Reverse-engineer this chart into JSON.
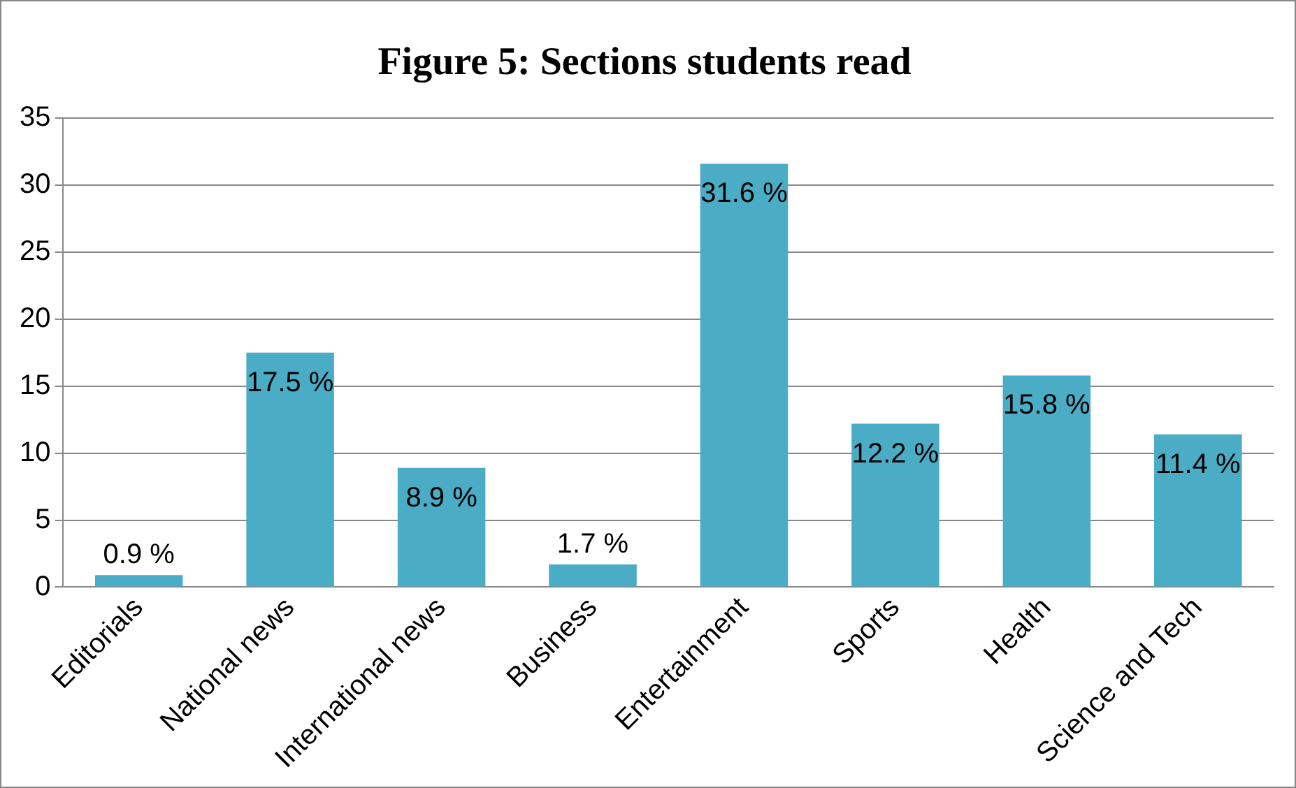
{
  "chart_data": {
    "type": "bar",
    "title": "Figure 5: Sections students read",
    "categories": [
      "Editorials",
      "National news",
      "International news",
      "Business",
      "Entertainment",
      "Sports",
      "Health",
      "Science and Tech"
    ],
    "values": [
      0.9,
      17.5,
      8.9,
      1.7,
      31.6,
      12.2,
      15.8,
      11.4
    ],
    "value_labels": [
      "0.9 %",
      "17.5 %",
      "8.9 %",
      "1.7 %",
      "31.6 %",
      "12.2 %",
      "15.8 %",
      "11.4 %"
    ],
    "color": "#4bacc6",
    "ylim": [
      0,
      35
    ],
    "yticks": [
      0,
      5,
      10,
      15,
      20,
      25,
      30,
      35
    ],
    "grid": "y"
  }
}
